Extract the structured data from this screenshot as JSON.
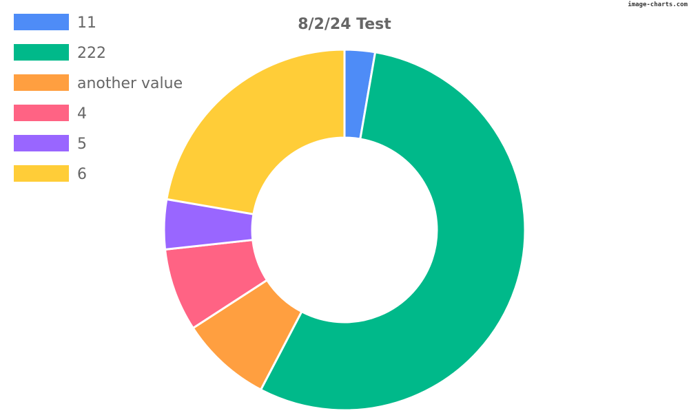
{
  "watermark": "image-charts.com",
  "chart_data": {
    "type": "pie",
    "variant": "doughnut",
    "title": "8/2/24 Test",
    "legend_position": "top-left",
    "labels": [
      "11",
      "222",
      "another value",
      "4",
      "5",
      "6"
    ],
    "values": [
      11,
      222,
      33,
      30,
      18,
      90
    ],
    "colors": [
      "#4e8cf7",
      "#00b98a",
      "#ff9f40",
      "#ff6384",
      "#9966ff",
      "#ffcd38"
    ]
  }
}
